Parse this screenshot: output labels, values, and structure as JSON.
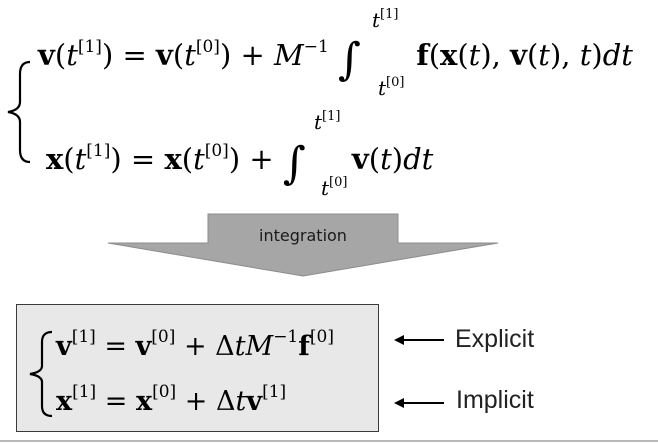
{
  "top_system": {
    "velocity_equation": "v(t[1]) = v(t[0]) + M−1 ∫t[0]t[1] f(x(t), v(t), t)dt",
    "position_equation": "x(t[1]) = x(t[0]) + ∫t[0]t[1] v(t)dt"
  },
  "arrow": {
    "label": "integration",
    "fill_color": "#a6a6a6",
    "stroke_color": "#8c8c8c"
  },
  "result_system": {
    "velocity_update": "v[1] = v[0] + ΔtM−1f[0]",
    "position_update": "x[1] = x[0] + Δtv[1]",
    "box_color": "#e8e8e8"
  },
  "labels": {
    "explicit": "Explicit",
    "implicit": "Implicit"
  }
}
